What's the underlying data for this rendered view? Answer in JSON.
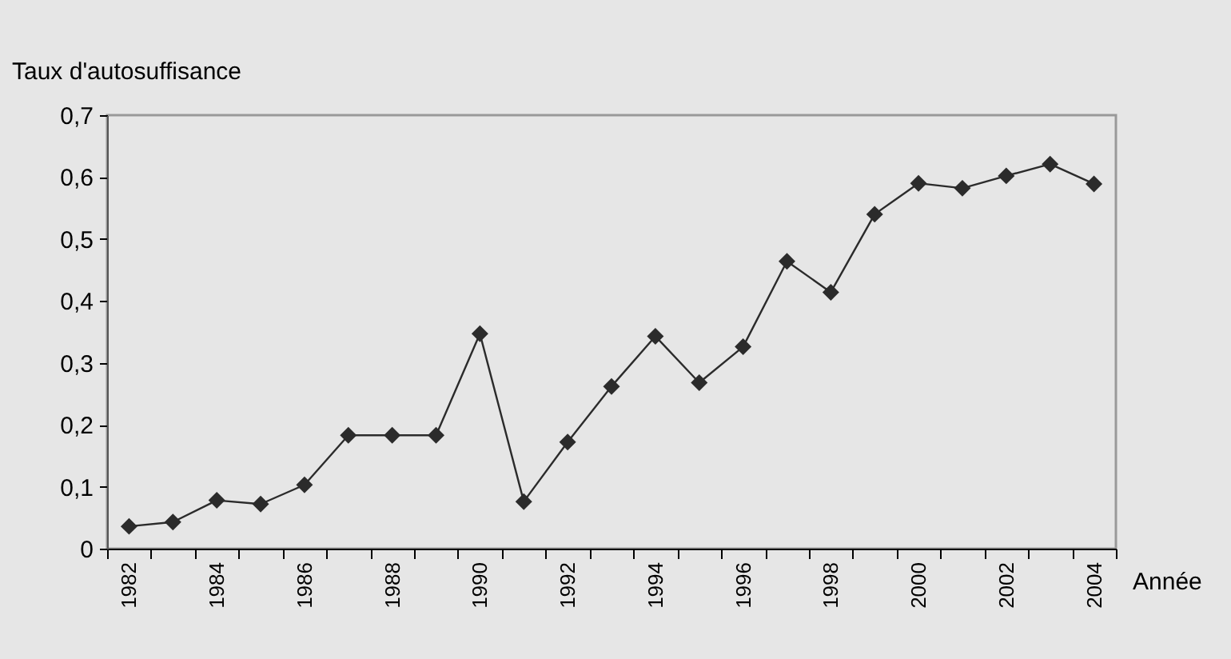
{
  "chart_data": {
    "type": "line",
    "ylabel": "Taux d'autosuffisance",
    "xlabel": "Année",
    "categories": [
      "1982",
      null,
      "1984",
      null,
      "1986",
      null,
      "1988",
      null,
      "1990",
      null,
      "1992",
      null,
      "1994",
      null,
      "1996",
      null,
      "1998",
      null,
      "2000",
      null,
      "2002",
      null,
      "2004"
    ],
    "series": [
      {
        "color": "#2b2b2b",
        "values": [
          0.036,
          0.043,
          0.078,
          0.072,
          0.103,
          0.183,
          0.183,
          0.183,
          0.347,
          0.076,
          0.172,
          0.262,
          0.343,
          0.268,
          0.326,
          0.464,
          0.414,
          0.54,
          0.59,
          0.582,
          0.602,
          0.621,
          0.589
        ]
      }
    ],
    "ylim": [
      0,
      0.7
    ],
    "yticks": [
      {
        "value": 0,
        "label": "0"
      },
      {
        "value": 0.1,
        "label": "0,1"
      },
      {
        "value": 0.2,
        "label": "0,2"
      },
      {
        "value": 0.3,
        "label": "0,3"
      },
      {
        "value": 0.4,
        "label": "0,4"
      },
      {
        "value": 0.5,
        "label": "0,5"
      },
      {
        "value": 0.6,
        "label": "0,6"
      },
      {
        "value": 0.7,
        "label": "0,7"
      }
    ],
    "marker": "diamond",
    "line_style": "solid",
    "grid": false
  }
}
